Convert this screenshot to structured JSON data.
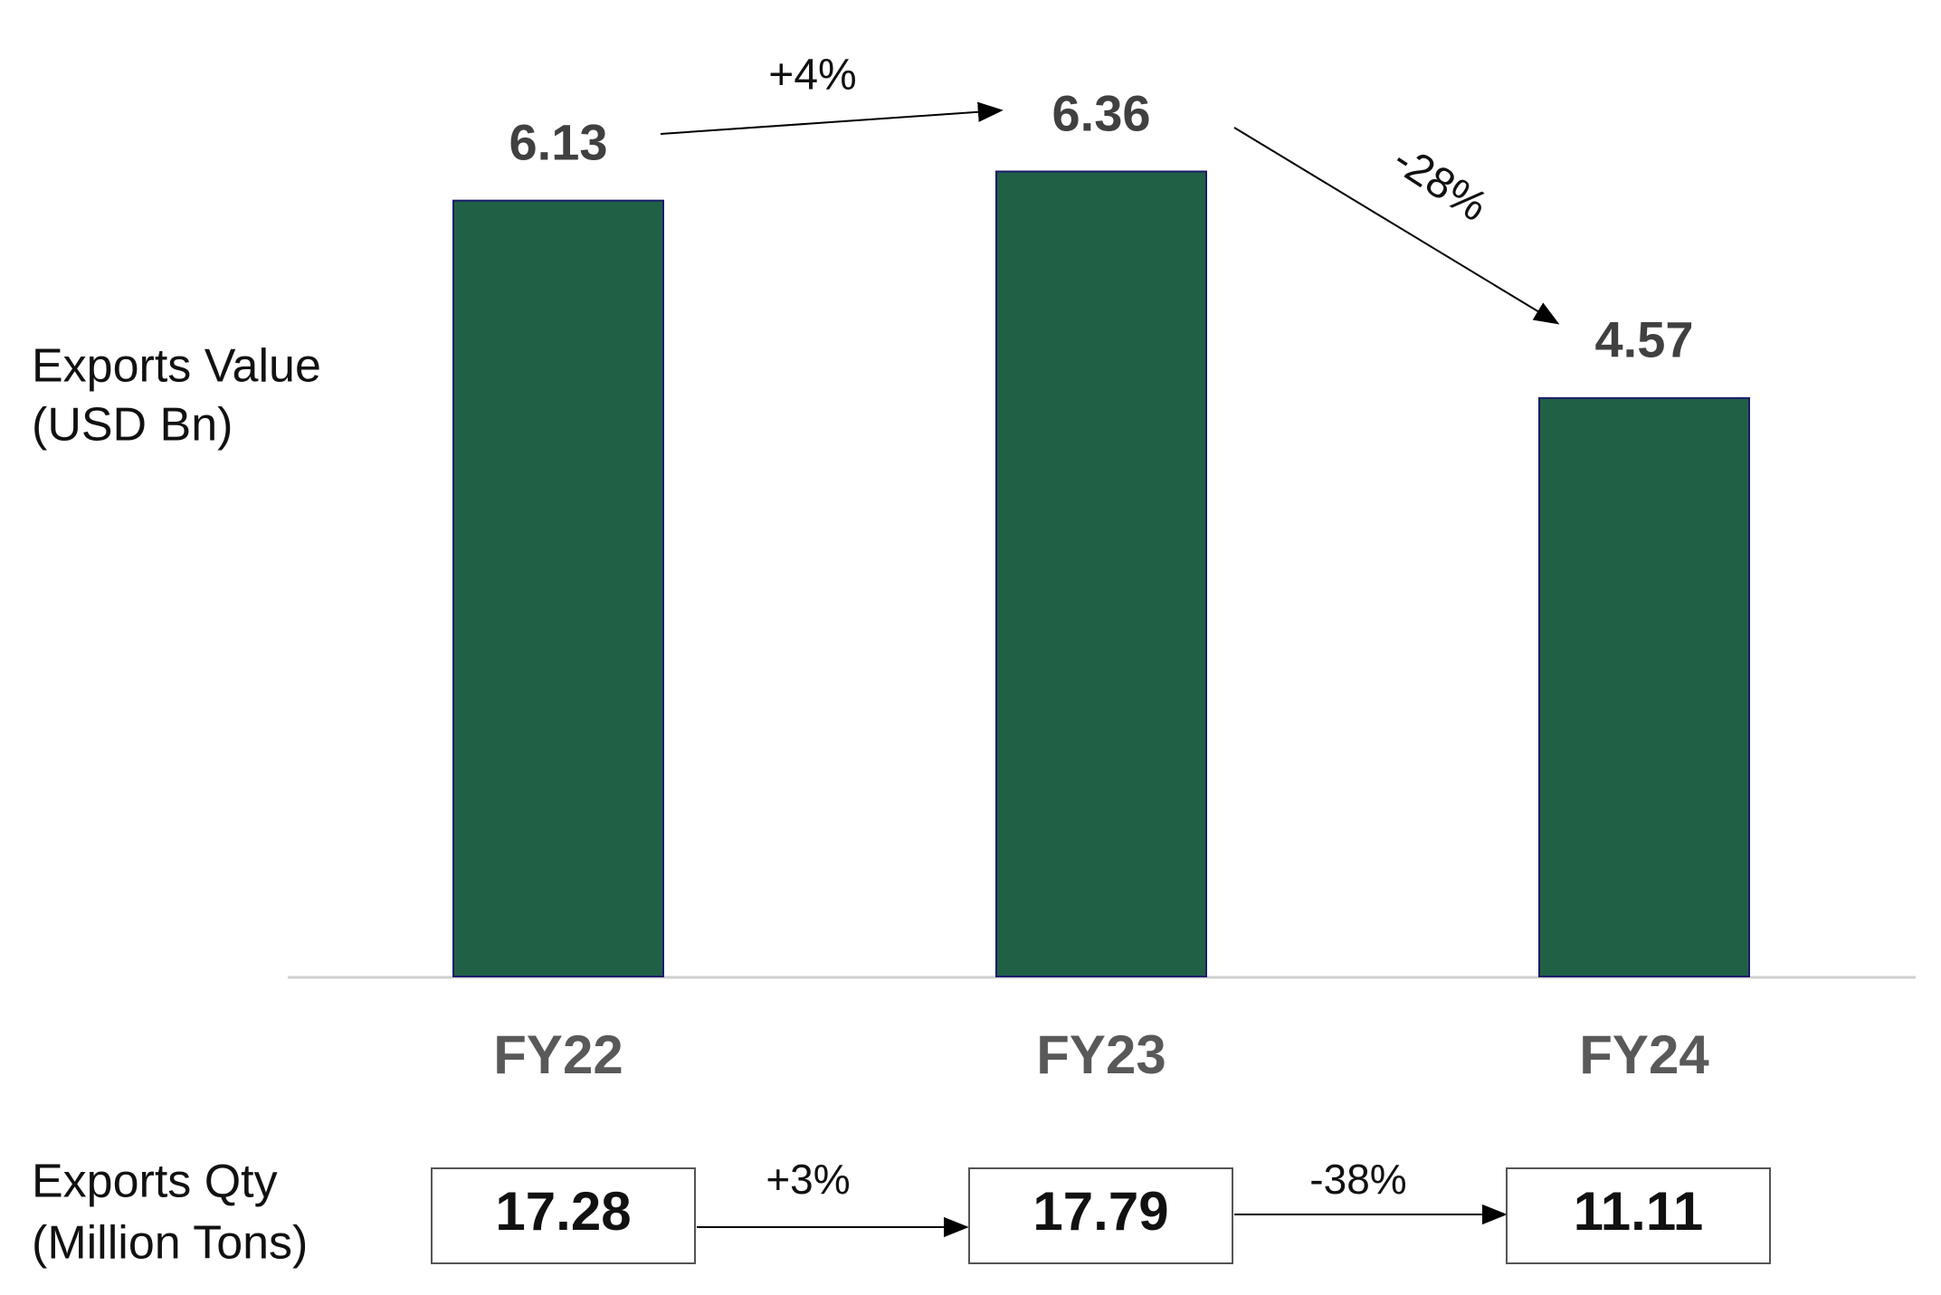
{
  "chart_data": {
    "type": "bar",
    "y_label_lines": [
      "Exports Value",
      "(USD Bn)"
    ],
    "categories": [
      "FY22",
      "FY23",
      "FY24"
    ],
    "values": [
      6.13,
      6.36,
      4.57
    ],
    "color": "#206146",
    "edge_color": "#1c1c6b",
    "ylim": [
      0,
      7
    ],
    "changes": [
      "+4%",
      "-28%"
    ]
  },
  "exports_qty": {
    "label_lines": [
      "Exports Qty",
      "(Million Tons)"
    ],
    "values": [
      17.28,
      17.79,
      11.11
    ],
    "changes": [
      "+3%",
      "-38%"
    ]
  }
}
